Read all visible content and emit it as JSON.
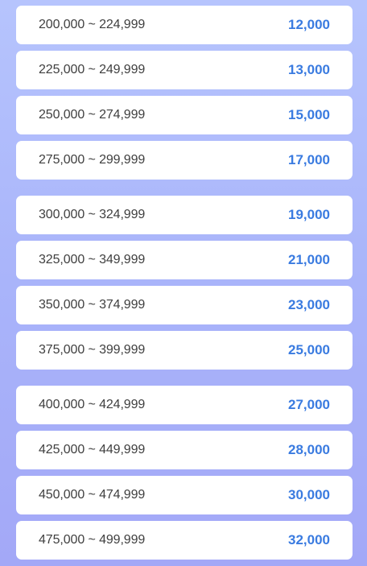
{
  "groups": [
    [
      {
        "range": "200,000 ~ 224,999",
        "amount": "12,000"
      },
      {
        "range": "225,000 ~ 249,999",
        "amount": "13,000"
      },
      {
        "range": "250,000 ~ 274,999",
        "amount": "15,000"
      },
      {
        "range": "275,000 ~ 299,999",
        "amount": "17,000"
      }
    ],
    [
      {
        "range": "300,000 ~ 324,999",
        "amount": "19,000"
      },
      {
        "range": "325,000 ~ 349,999",
        "amount": "21,000"
      },
      {
        "range": "350,000 ~ 374,999",
        "amount": "23,000"
      },
      {
        "range": "375,000 ~ 399,999",
        "amount": "25,000"
      }
    ],
    [
      {
        "range": "400,000 ~ 424,999",
        "amount": "27,000"
      },
      {
        "range": "425,000 ~ 449,999",
        "amount": "28,000"
      },
      {
        "range": "450,000 ~ 474,999",
        "amount": "30,000"
      },
      {
        "range": "475,000 ~ 499,999",
        "amount": "32,000"
      }
    ]
  ]
}
